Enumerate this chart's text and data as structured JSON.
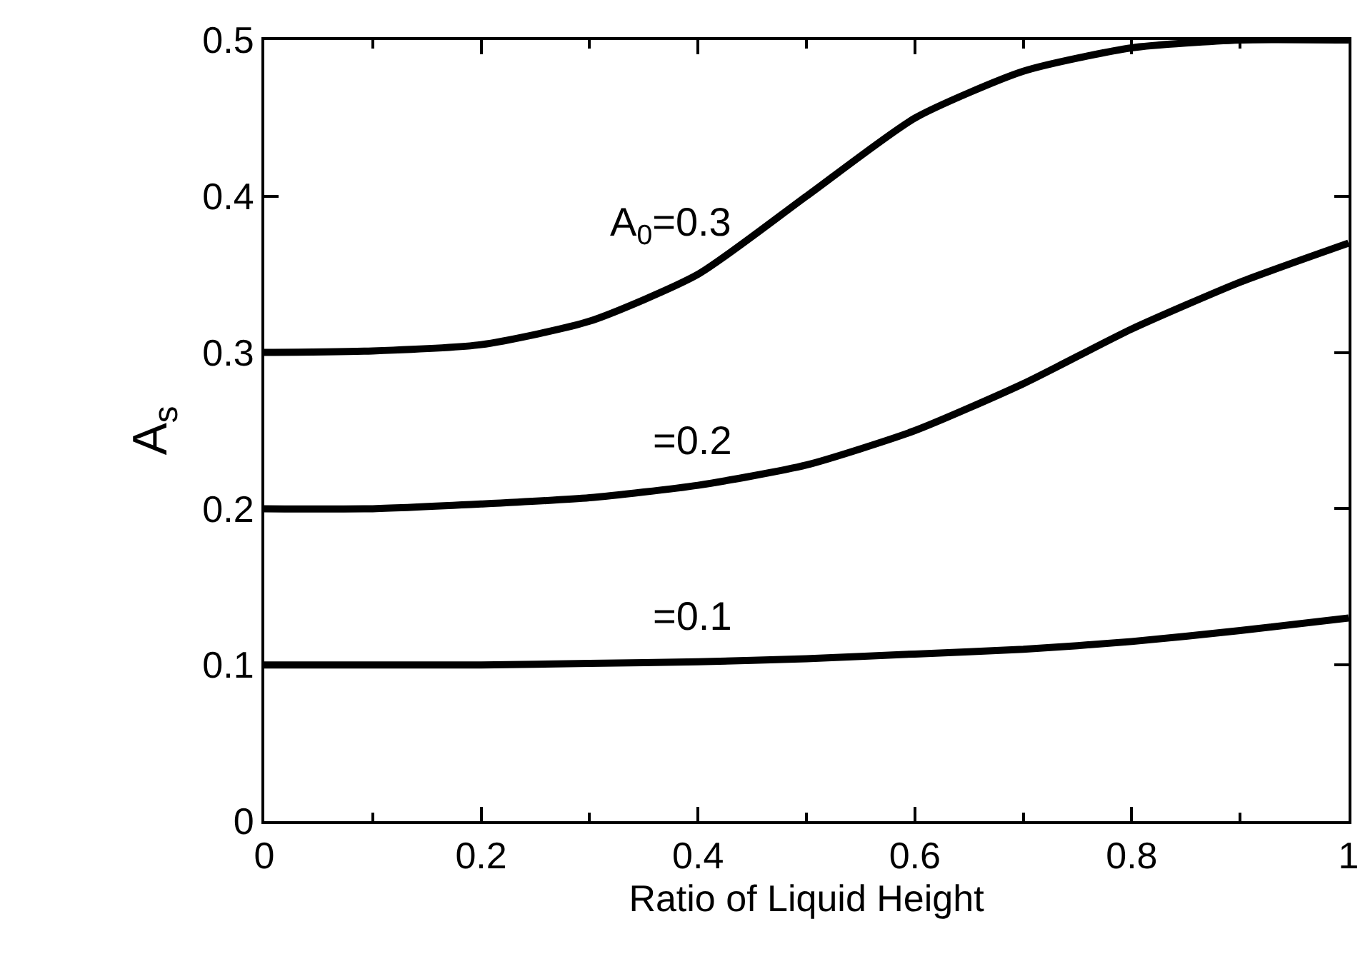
{
  "chart_data": {
    "type": "line",
    "xlabel": "Ratio of Liquid Height",
    "ylabel": "A$_{s}$",
    "x": [
      0,
      0.1,
      0.2,
      0.3,
      0.4,
      0.5,
      0.6,
      0.7,
      0.8,
      0.9,
      1.0
    ],
    "series": [
      {
        "name": "A$_{0}$=0.3",
        "color": "#000000",
        "values": [
          0.3,
          0.301,
          0.305,
          0.32,
          0.35,
          0.4,
          0.45,
          0.48,
          0.495,
          0.5,
          0.5
        ]
      },
      {
        "name": "=0.2",
        "color": "#000000",
        "values": [
          0.2,
          0.2,
          0.203,
          0.207,
          0.215,
          0.228,
          0.25,
          0.28,
          0.315,
          0.345,
          0.37
        ]
      },
      {
        "name": "=0.1",
        "color": "#000000",
        "values": [
          0.1,
          0.1,
          0.1,
          0.101,
          0.102,
          0.104,
          0.107,
          0.11,
          0.115,
          0.122,
          0.13
        ]
      }
    ],
    "xlim": [
      0,
      1
    ],
    "xticks": [
      0,
      0.2,
      0.4,
      0.6,
      0.8,
      1
    ],
    "ylim": [
      0,
      0.5
    ],
    "yticks": [
      0,
      0.1,
      0.2,
      0.3,
      0.4,
      0.5
    ],
    "grid": false,
    "legend": false,
    "marker": "none",
    "line_style": "solid"
  }
}
